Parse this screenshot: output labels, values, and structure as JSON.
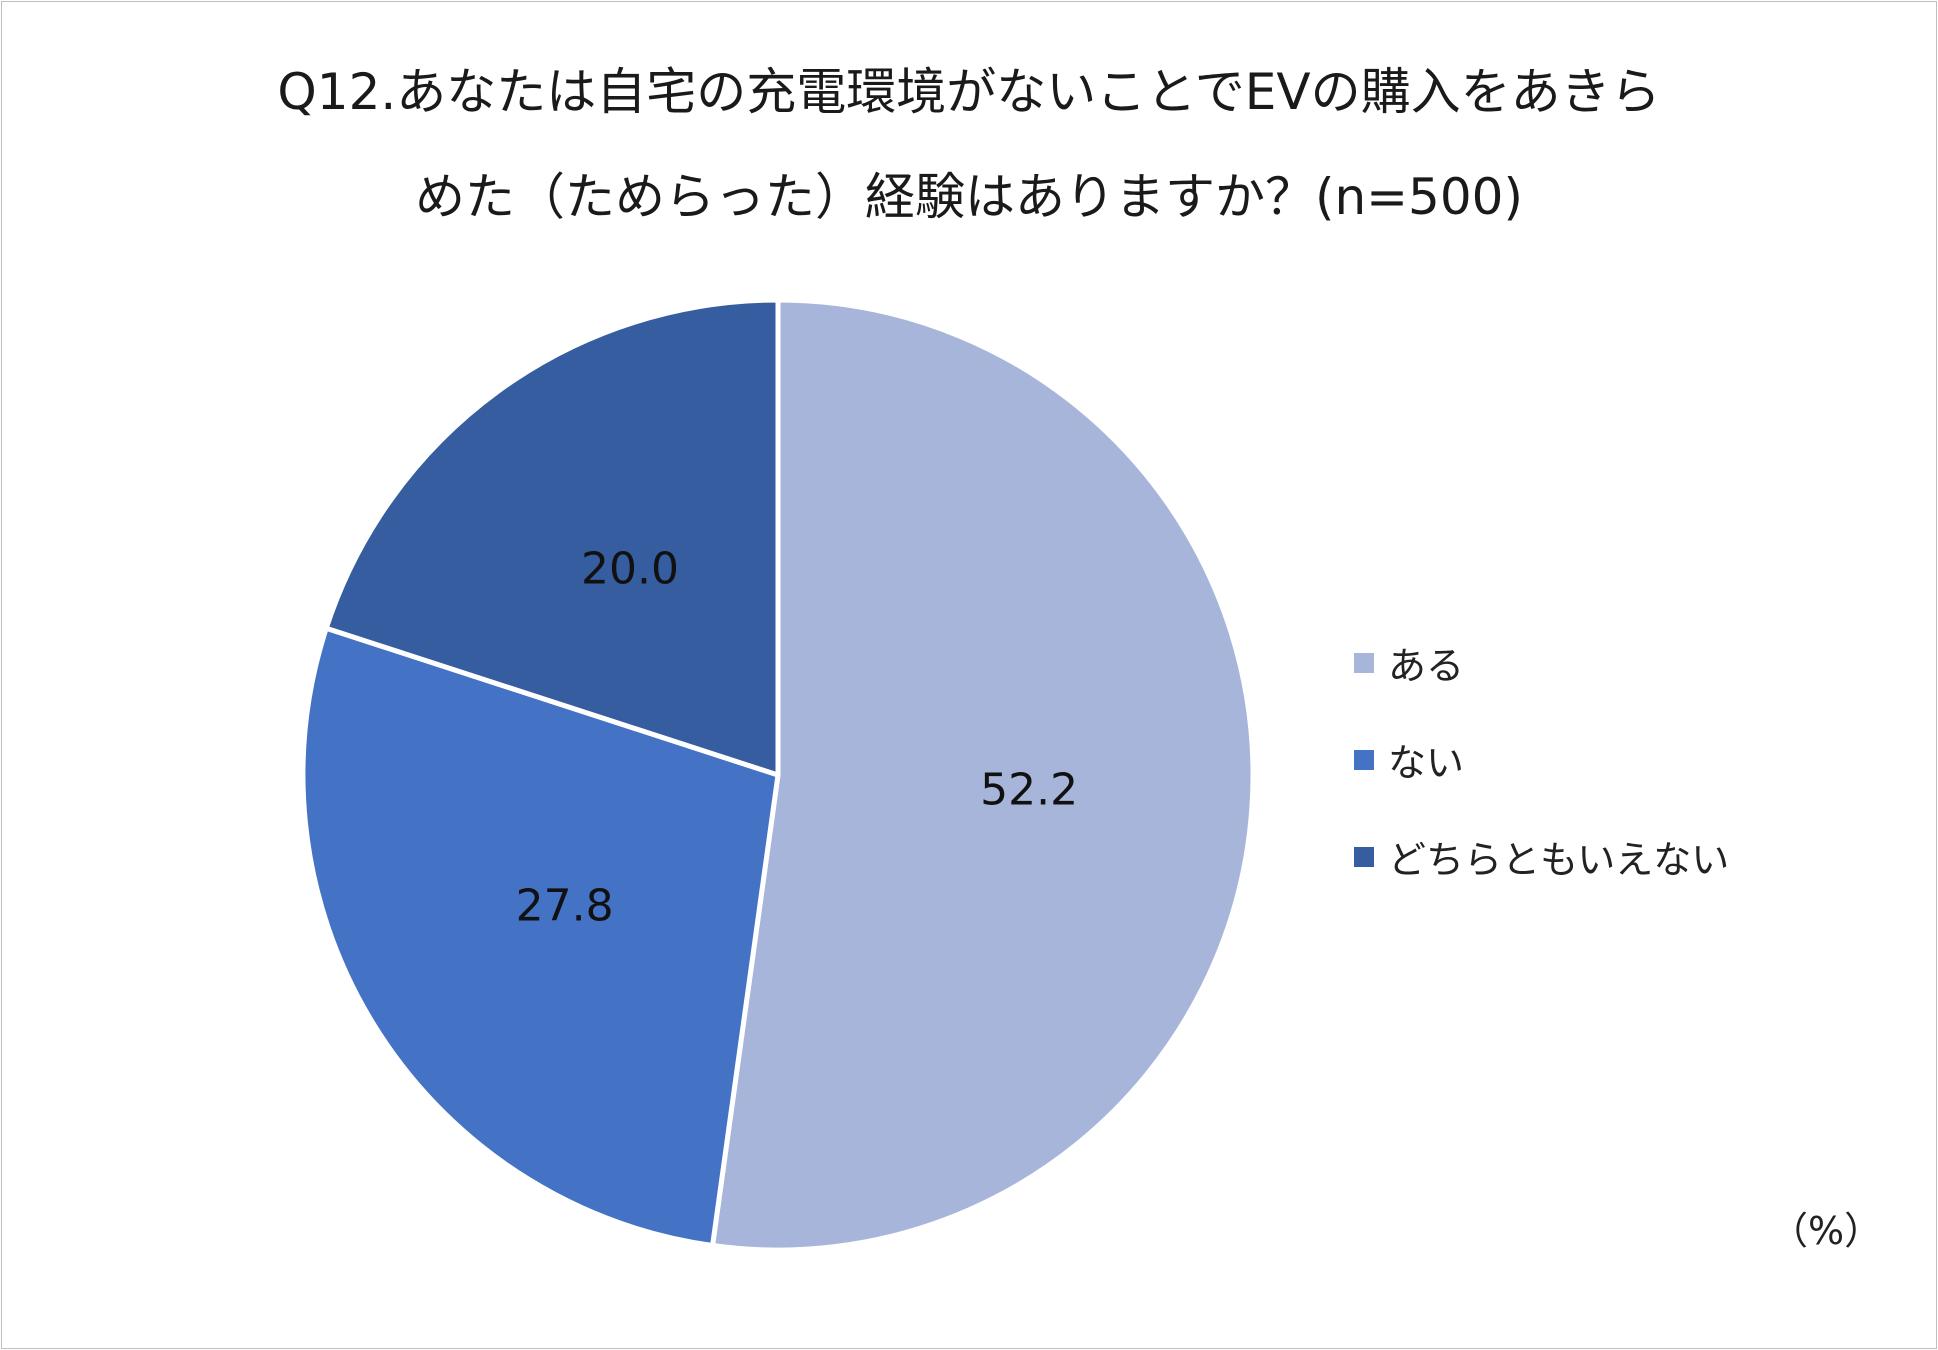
{
  "chart_data": {
    "type": "pie",
    "title_line1": "Q12.あなたは自宅の充電環境がないことでEVの購入をあきら",
    "title_line2": "めた（ためらった）経験はありますか？(n=500)",
    "unit_label": "（%）",
    "legend_position": "right",
    "start_angle_deg": 0,
    "direction": "clockwise",
    "slices": [
      {
        "label": "ある",
        "value": 52.2,
        "value_label": "52.2",
        "color": "#a7b5da"
      },
      {
        "label": "ない",
        "value": 27.8,
        "value_label": "27.8",
        "color": "#4472c4"
      },
      {
        "label": "どちらともいえない",
        "value": 20.0,
        "value_label": "20.0",
        "color": "#365da0"
      }
    ]
  }
}
